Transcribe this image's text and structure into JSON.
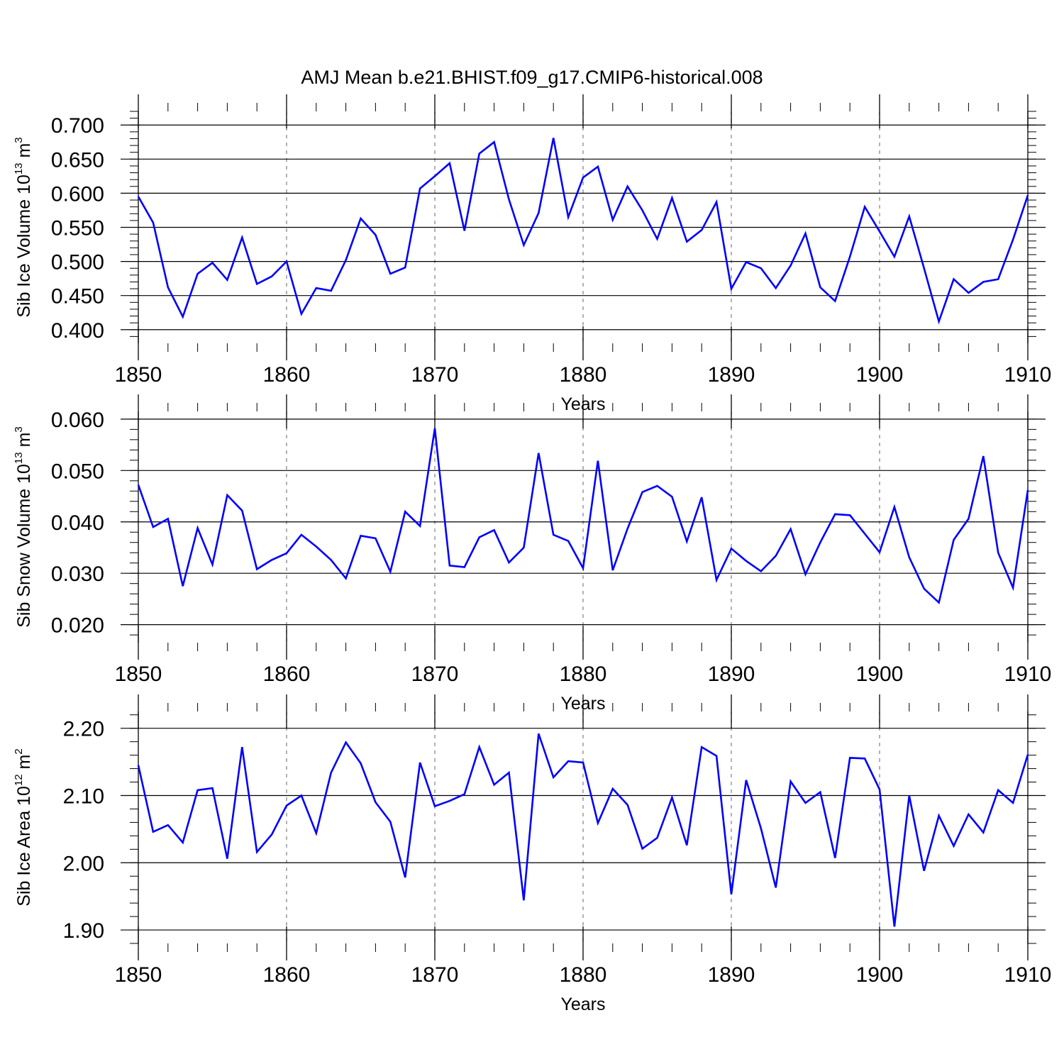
{
  "title": "AMJ Mean b.e21.BHIST.f09_g17.CMIP6-historical.008",
  "chart_data": [
    {
      "type": "line",
      "xlabel": "Years",
      "ylabel_parts": [
        "Sib Ice Volume 10",
        "13",
        " m",
        "3"
      ],
      "xlim": [
        1850,
        1910
      ],
      "ylim": [
        0.38,
        0.72
      ],
      "yticks": [
        0.4,
        0.45,
        0.5,
        0.55,
        0.6,
        0.65,
        0.7
      ],
      "ytick_labels": [
        "0.400",
        "0.450",
        "0.500",
        "0.550",
        "0.600",
        "0.650",
        "0.700"
      ],
      "xticks": [
        1850,
        1860,
        1870,
        1880,
        1890,
        1900,
        1910
      ],
      "xtick_labels": [
        "1850",
        "1860",
        "1870",
        "1880",
        "1890",
        "1900",
        "1910"
      ],
      "grid": "vertical dashed at major x ticks",
      "color": "#0000ff",
      "x_start": 1850,
      "values": [
        0.595,
        0.557,
        0.462,
        0.419,
        0.482,
        0.498,
        0.473,
        0.535,
        0.467,
        0.478,
        0.5,
        0.423,
        0.461,
        0.457,
        0.502,
        0.563,
        0.539,
        0.482,
        0.491,
        0.607,
        0.625,
        0.644,
        0.545,
        0.658,
        0.675,
        0.591,
        0.524,
        0.571,
        0.681,
        0.565,
        0.623,
        0.639,
        0.561,
        0.61,
        0.575,
        0.533,
        0.593,
        0.529,
        0.546,
        0.587,
        0.46,
        0.499,
        0.49,
        0.461,
        0.494,
        0.541,
        0.462,
        0.442,
        0.507,
        0.58,
        0.544,
        0.507,
        0.566,
        0.49,
        0.412,
        0.474,
        0.454,
        0.47,
        0.474,
        0.532,
        0.597
      ]
    },
    {
      "type": "line",
      "xlabel": "Years",
      "ylabel_parts": [
        "Sib Snow Volume 10",
        "13",
        " m",
        "3"
      ],
      "xlim": [
        1850,
        1910
      ],
      "ylim": [
        0.0165,
        0.0615
      ],
      "yticks": [
        0.02,
        0.03,
        0.04,
        0.05,
        0.06
      ],
      "ytick_labels": [
        "0.020",
        "0.030",
        "0.040",
        "0.050",
        "0.060"
      ],
      "xticks": [
        1850,
        1860,
        1870,
        1880,
        1890,
        1900,
        1910
      ],
      "xtick_labels": [
        "1850",
        "1860",
        "1870",
        "1880",
        "1890",
        "1900",
        "1910"
      ],
      "grid": "vertical dashed at major x ticks",
      "color": "#0000ff",
      "x_start": 1850,
      "values": [
        0.0472,
        0.039,
        0.0406,
        0.0275,
        0.0388,
        0.0317,
        0.0452,
        0.0422,
        0.0308,
        0.0326,
        0.0339,
        0.0375,
        0.0352,
        0.0326,
        0.029,
        0.0373,
        0.0368,
        0.0303,
        0.042,
        0.0392,
        0.0582,
        0.0315,
        0.0312,
        0.037,
        0.0384,
        0.0321,
        0.035,
        0.0534,
        0.0375,
        0.0363,
        0.031,
        0.0519,
        0.0306,
        0.0387,
        0.0458,
        0.047,
        0.0449,
        0.0362,
        0.0448,
        0.0287,
        0.0348,
        0.0324,
        0.0304,
        0.0334,
        0.0386,
        0.0298,
        0.036,
        0.0415,
        0.0413,
        0.0377,
        0.0341,
        0.0429,
        0.0331,
        0.027,
        0.0243,
        0.0365,
        0.0406,
        0.0528,
        0.034,
        0.0272,
        0.0462
      ]
    },
    {
      "type": "line",
      "xlabel": "Years",
      "ylabel_parts": [
        "Sib Ice Area 10",
        "12",
        " m",
        "2"
      ],
      "xlim": [
        1850,
        1910
      ],
      "ylim": [
        1.88,
        2.225
      ],
      "yticks": [
        1.9,
        2.0,
        2.1,
        2.2
      ],
      "ytick_labels": [
        "1.90",
        "2.00",
        "2.10",
        "2.20"
      ],
      "xticks": [
        1850,
        1860,
        1870,
        1880,
        1890,
        1900,
        1910
      ],
      "xtick_labels": [
        "1850",
        "1860",
        "1870",
        "1880",
        "1890",
        "1900",
        "1910"
      ],
      "grid": "vertical dashed at major x ticks",
      "color": "#0000ff",
      "x_start": 1850,
      "values": [
        2.145,
        2.046,
        2.056,
        2.03,
        2.108,
        2.111,
        2.006,
        2.172,
        2.016,
        2.042,
        2.085,
        2.1,
        2.044,
        2.134,
        2.179,
        2.148,
        2.09,
        2.061,
        1.978,
        2.149,
        2.084,
        2.092,
        2.102,
        2.172,
        2.116,
        2.134,
        1.944,
        2.192,
        2.127,
        2.151,
        2.149,
        2.059,
        2.11,
        2.086,
        2.021,
        2.037,
        2.097,
        2.026,
        2.172,
        2.159,
        1.953,
        2.123,
        2.051,
        1.963,
        2.121,
        2.089,
        2.105,
        2.007,
        2.156,
        2.155,
        2.109,
        1.905,
        2.1,
        1.988,
        2.07,
        2.025,
        2.072,
        2.045,
        2.108,
        2.089,
        2.161
      ]
    }
  ]
}
